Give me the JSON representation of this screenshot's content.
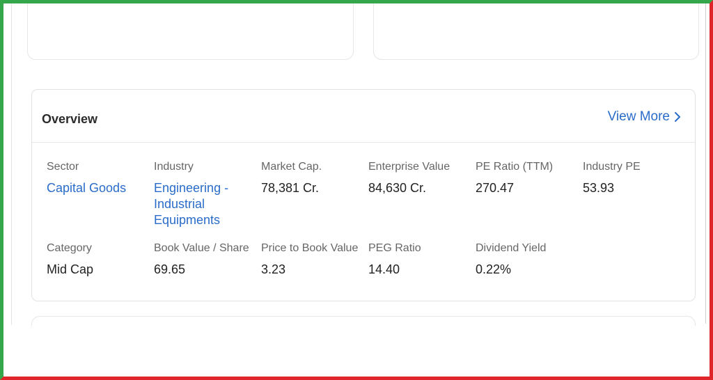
{
  "overview": {
    "title": "Overview",
    "view_more": "View More",
    "metrics": [
      {
        "label": "Sector",
        "value": "Capital Goods"
      },
      {
        "label": "Industry",
        "value": "Engineering - Industrial Equipments"
      },
      {
        "label": "Market Cap.",
        "value": "78,381 Cr."
      },
      {
        "label": "Enterprise Value",
        "value": "84,630 Cr."
      },
      {
        "label": "PE Ratio (TTM)",
        "value": "270.47"
      },
      {
        "label": "Industry PE",
        "value": "53.93"
      },
      {
        "label": "Category",
        "value": "Mid Cap"
      },
      {
        "label": "Book Value / Share",
        "value": "69.65"
      },
      {
        "label": "Price to Book Value",
        "value": "3.23"
      },
      {
        "label": "PEG Ratio",
        "value": "14.40"
      },
      {
        "label": "Dividend Yield",
        "value": "0.22%"
      }
    ]
  },
  "colors": {
    "link": "#2a6cc9",
    "frame_green": "#35a64a",
    "frame_red": "#e0252a"
  },
  "icons": {
    "view_more": "chevron-right-icon"
  }
}
